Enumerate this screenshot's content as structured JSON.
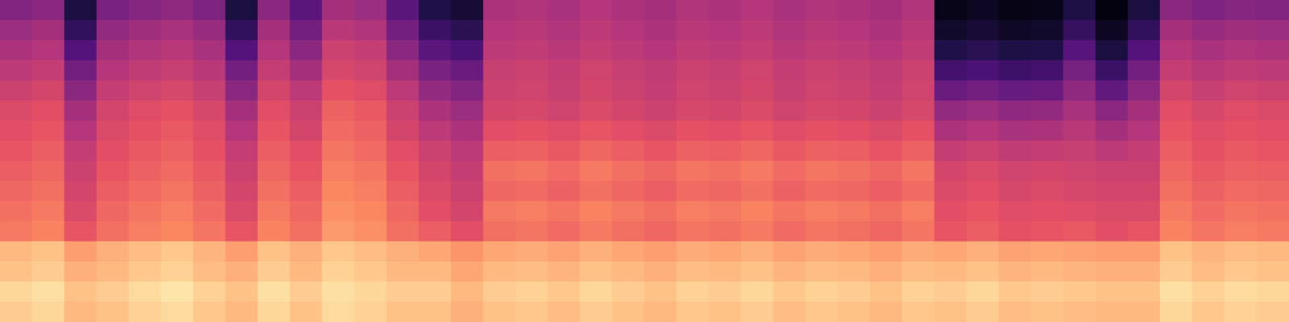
{
  "chart_data": {
    "type": "heatmap",
    "tick_labels": false,
    "color_range": [
      0,
      100
    ],
    "cells": [
      [
        38,
        40,
        12,
        36,
        39,
        41,
        37,
        12,
        40,
        28,
        46,
        44,
        28,
        14,
        10,
        48,
        49,
        47,
        50,
        48,
        46,
        49,
        48,
        50,
        47,
        49,
        48,
        46,
        49,
        4,
        6,
        3,
        4,
        13,
        2,
        12,
        40,
        37,
        39,
        38
      ],
      [
        44,
        46,
        18,
        42,
        45,
        47,
        43,
        18,
        46,
        34,
        51,
        49,
        34,
        20,
        16,
        50,
        51,
        49,
        52,
        50,
        48,
        51,
        50,
        52,
        49,
        51,
        50,
        48,
        51,
        8,
        10,
        7,
        8,
        19,
        6,
        18,
        46,
        43,
        45,
        44
      ],
      [
        48,
        50,
        26,
        46,
        49,
        51,
        47,
        26,
        50,
        40,
        56,
        54,
        40,
        28,
        24,
        52,
        53,
        51,
        54,
        52,
        50,
        53,
        52,
        54,
        51,
        53,
        52,
        50,
        53,
        14,
        16,
        13,
        14,
        27,
        12,
        26,
        50,
        47,
        49,
        48
      ],
      [
        52,
        54,
        34,
        50,
        53,
        55,
        51,
        34,
        54,
        46,
        59,
        57,
        46,
        36,
        32,
        55,
        56,
        54,
        57,
        55,
        53,
        56,
        55,
        57,
        54,
        56,
        55,
        53,
        56,
        22,
        24,
        21,
        22,
        35,
        20,
        34,
        54,
        51,
        53,
        52
      ],
      [
        56,
        58,
        40,
        54,
        57,
        59,
        55,
        40,
        58,
        52,
        63,
        61,
        52,
        42,
        38,
        56,
        57,
        55,
        58,
        56,
        54,
        57,
        56,
        58,
        55,
        57,
        56,
        54,
        57,
        32,
        34,
        31,
        32,
        41,
        30,
        40,
        58,
        55,
        57,
        56
      ],
      [
        60,
        62,
        46,
        58,
        61,
        63,
        59,
        46,
        62,
        56,
        67,
        65,
        56,
        48,
        44,
        58,
        59,
        57,
        60,
        58,
        56,
        59,
        58,
        60,
        57,
        59,
        58,
        56,
        59,
        42,
        44,
        41,
        42,
        47,
        40,
        46,
        62,
        59,
        61,
        60
      ],
      [
        62,
        64,
        50,
        60,
        63,
        65,
        61,
        50,
        64,
        58,
        69,
        67,
        58,
        52,
        48,
        62,
        63,
        61,
        64,
        62,
        60,
        63,
        62,
        64,
        61,
        63,
        62,
        60,
        63,
        48,
        50,
        47,
        48,
        51,
        46,
        50,
        64,
        61,
        63,
        62
      ],
      [
        64,
        66,
        54,
        62,
        65,
        67,
        63,
        54,
        66,
        62,
        71,
        69,
        62,
        56,
        52,
        66,
        67,
        65,
        68,
        66,
        64,
        67,
        66,
        68,
        65,
        67,
        66,
        64,
        67,
        54,
        56,
        53,
        54,
        55,
        52,
        54,
        66,
        63,
        65,
        64
      ],
      [
        66,
        68,
        56,
        64,
        67,
        69,
        65,
        56,
        68,
        64,
        73,
        71,
        64,
        58,
        54,
        70,
        71,
        69,
        72,
        70,
        68,
        71,
        70,
        72,
        69,
        71,
        70,
        68,
        71,
        58,
        60,
        57,
        58,
        57,
        56,
        56,
        68,
        65,
        67,
        66
      ],
      [
        68,
        70,
        58,
        66,
        69,
        71,
        67,
        58,
        70,
        66,
        75,
        73,
        66,
        60,
        56,
        68,
        69,
        67,
        70,
        68,
        66,
        69,
        68,
        70,
        67,
        69,
        68,
        66,
        69,
        60,
        62,
        59,
        60,
        59,
        58,
        58,
        70,
        67,
        69,
        68
      ],
      [
        70,
        72,
        60,
        68,
        71,
        73,
        69,
        60,
        72,
        68,
        77,
        75,
        68,
        62,
        58,
        72,
        73,
        71,
        74,
        72,
        70,
        73,
        72,
        74,
        71,
        73,
        72,
        70,
        73,
        62,
        64,
        61,
        62,
        61,
        60,
        60,
        72,
        69,
        71,
        70
      ],
      [
        72,
        74,
        64,
        70,
        73,
        75,
        71,
        64,
        74,
        70,
        79,
        77,
        70,
        66,
        62,
        70,
        71,
        69,
        72,
        70,
        68,
        71,
        70,
        72,
        69,
        71,
        70,
        68,
        71,
        64,
        66,
        63,
        64,
        65,
        62,
        64,
        74,
        71,
        73,
        72
      ],
      [
        86,
        88,
        80,
        84,
        87,
        89,
        85,
        80,
        88,
        84,
        89,
        87,
        84,
        82,
        78,
        82,
        83,
        81,
        84,
        82,
        80,
        83,
        82,
        84,
        81,
        83,
        82,
        80,
        83,
        82,
        84,
        81,
        82,
        81,
        80,
        80,
        88,
        85,
        87,
        86
      ],
      [
        88,
        90,
        84,
        86,
        89,
        91,
        87,
        84,
        90,
        86,
        91,
        89,
        86,
        86,
        82,
        86,
        87,
        85,
        88,
        86,
        84,
        87,
        86,
        88,
        85,
        87,
        86,
        84,
        87,
        86,
        88,
        85,
        86,
        85,
        84,
        84,
        90,
        87,
        89,
        88
      ],
      [
        92,
        94,
        88,
        90,
        93,
        95,
        91,
        88,
        94,
        90,
        94,
        92,
        90,
        90,
        86,
        90,
        91,
        89,
        92,
        90,
        88,
        91,
        90,
        92,
        89,
        91,
        90,
        88,
        91,
        90,
        92,
        89,
        90,
        89,
        88,
        88,
        94,
        91,
        93,
        92
      ],
      [
        90,
        92,
        86,
        88,
        91,
        93,
        89,
        86,
        92,
        88,
        93,
        91,
        88,
        88,
        84,
        88,
        89,
        87,
        90,
        88,
        86,
        89,
        88,
        90,
        87,
        89,
        88,
        86,
        89,
        88,
        90,
        87,
        88,
        87,
        86,
        86,
        92,
        89,
        91,
        90
      ]
    ]
  }
}
